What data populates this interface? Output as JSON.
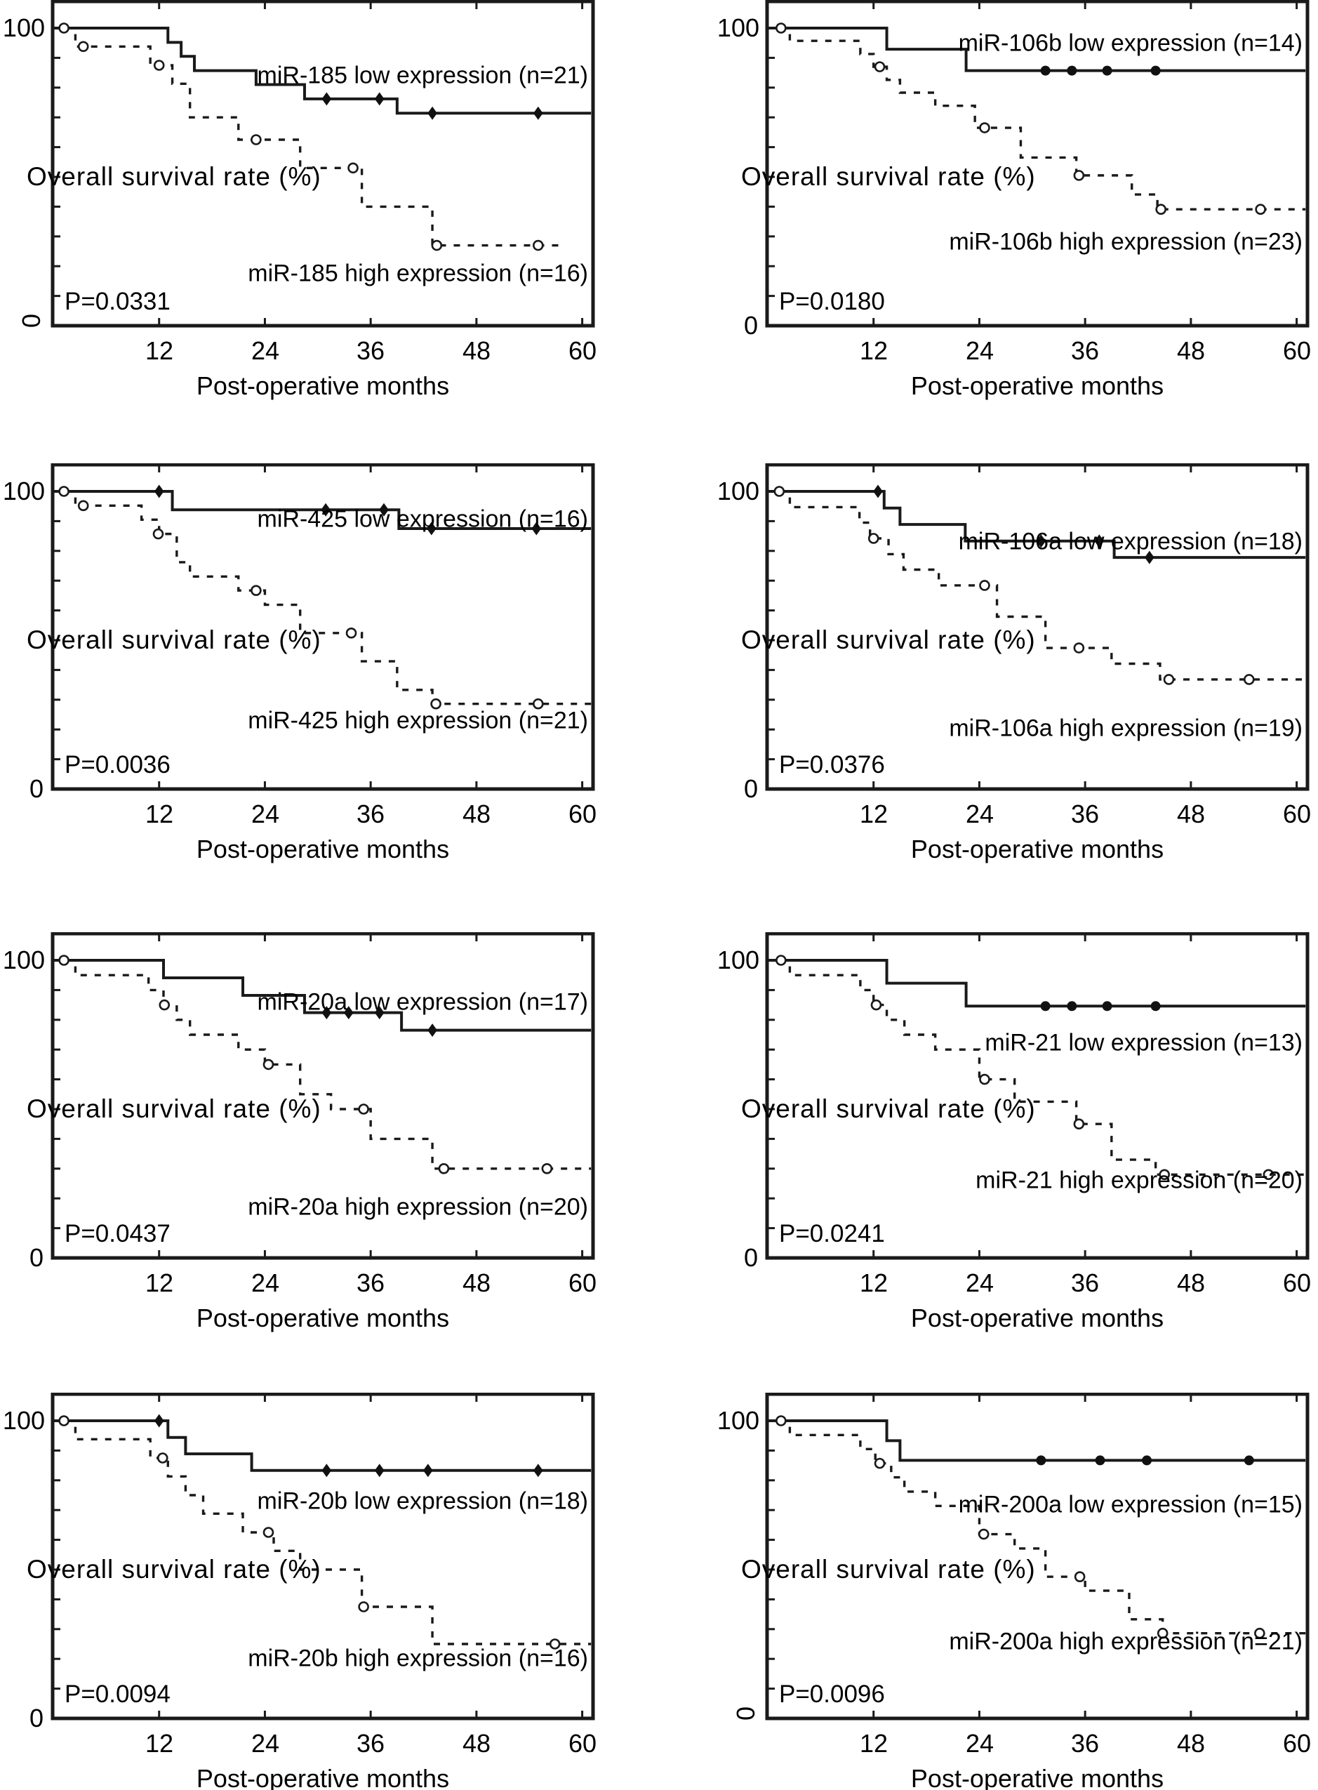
{
  "axis": {
    "x_ticks": [
      "12",
      "24",
      "36",
      "48",
      "60"
    ],
    "x_label": "Post-operative months",
    "y_label": "Overall survival rate (%)",
    "y_top": "100",
    "y_bottom": "0"
  },
  "chart_data": {
    "type": "km_survival_grid",
    "layout": "4 rows x 2 columns",
    "x_range_months": [
      0,
      61
    ],
    "y_range_percent": [
      0,
      100
    ],
    "x_tick_values": [
      12,
      24,
      36,
      48,
      60
    ],
    "grid": "off",
    "series_styles": {
      "low": "solid line, filled censor marks",
      "high": "dashed line, open circle censor marks"
    },
    "panels": [
      {
        "name": "miR-185",
        "col": 0,
        "row": 0,
        "title_low": "miR-185 low expression (n=21)",
        "title_high": "miR-185 high expression (n=16)",
        "p": "P=0.0331",
        "title_low_y": 108,
        "title_high_y": 390,
        "zero_rotated": true,
        "low": {
          "marker": "diamond",
          "start_circle": [
            1.2,
            100
          ],
          "end": 61,
          "steps": [
            [
              13,
              95.2
            ],
            [
              14.5,
              90.5
            ],
            [
              16,
              85.7
            ],
            [
              23,
              81
            ],
            [
              28.5,
              76.2
            ],
            [
              39,
              71.4
            ]
          ],
          "censors": [
            [
              31,
              76.2
            ],
            [
              37,
              76.2
            ],
            [
              43,
              71.4
            ],
            [
              55,
              71.4
            ]
          ]
        },
        "high": {
          "end": 58,
          "steps": [
            [
              2.5,
              93.8
            ],
            [
              11,
              87.5
            ],
            [
              13.5,
              81.3
            ],
            [
              15.5,
              70
            ],
            [
              21,
              62.5
            ],
            [
              28,
              53
            ],
            [
              35,
              40
            ],
            [
              43,
              27
            ]
          ],
          "circles": [
            [
              3.4,
              93.8
            ],
            [
              12,
              87.5
            ],
            [
              23,
              62.5
            ],
            [
              34,
              53
            ],
            [
              43.5,
              27
            ],
            [
              55,
              27
            ]
          ]
        }
      },
      {
        "name": "miR-106b",
        "col": 1,
        "row": 0,
        "title_low": "miR-106b low expression (n=14)",
        "title_high": "miR-106b high expression (n=23)",
        "p": "P=0.0180",
        "title_low_y": 62,
        "title_high_y": 345,
        "zero_rotated": false,
        "low": {
          "marker": "dot",
          "start_circle": [
            1.5,
            100
          ],
          "end": 61,
          "steps": [
            [
              13.5,
              92.9
            ],
            [
              22.5,
              85.7
            ]
          ],
          "censors": [
            [
              31.5,
              85.7
            ],
            [
              34.5,
              85.7
            ],
            [
              38.5,
              85.7
            ],
            [
              44,
              85.7
            ]
          ]
        },
        "high": {
          "end": 61,
          "steps": [
            [
              2.5,
              95.7
            ],
            [
              10.5,
              91.3
            ],
            [
              12,
              87
            ],
            [
              13.5,
              82.6
            ],
            [
              15,
              78.3
            ],
            [
              19,
              73.9
            ],
            [
              23.5,
              66.5
            ],
            [
              28.7,
              56.5
            ],
            [
              35,
              50.5
            ],
            [
              41.3,
              44.1
            ],
            [
              44.2,
              39.1
            ]
          ],
          "circles": [
            [
              12.7,
              87
            ],
            [
              24.6,
              66.5
            ],
            [
              35.3,
              50.5
            ],
            [
              44.6,
              39.1
            ],
            [
              55.9,
              39.1
            ]
          ]
        }
      },
      {
        "name": "miR-425",
        "col": 0,
        "row": 1,
        "title_low": "miR-425 low expression (n=16)",
        "title_high": "miR-425 high expression (n=21)",
        "p": "P=0.0036",
        "title_low_y": 80,
        "title_high_y": 367,
        "zero_rotated": false,
        "low": {
          "marker": "diamond",
          "start_circle": [
            1.2,
            100
          ],
          "end": 61,
          "steps": [
            [
              13.5,
              93.8
            ],
            [
              39.2,
              87.5
            ]
          ],
          "censors": [
            [
              12,
              100
            ],
            [
              30.9,
              93.8
            ],
            [
              37.5,
              93.8
            ],
            [
              42.9,
              87.5
            ],
            [
              54.8,
              87.5
            ]
          ]
        },
        "high": {
          "end": 61,
          "steps": [
            [
              2.5,
              95.2
            ],
            [
              10,
              90.5
            ],
            [
              12,
              85.7
            ],
            [
              14,
              76.2
            ],
            [
              15.5,
              71.4
            ],
            [
              21,
              66.7
            ],
            [
              24,
              61.9
            ],
            [
              28,
              52.4
            ],
            [
              35,
              42.9
            ],
            [
              39,
              33.3
            ],
            [
              43,
              28.6
            ]
          ],
          "circles": [
            [
              3.4,
              95.2
            ],
            [
              11.9,
              85.7
            ],
            [
              23,
              66.7
            ],
            [
              33.8,
              52.4
            ],
            [
              43.4,
              28.6
            ],
            [
              55,
              28.6
            ]
          ]
        }
      },
      {
        "name": "miR-106a",
        "col": 1,
        "row": 1,
        "title_low": "miR-106a low expression (n=18)",
        "title_high": "miR-106a high expression (n=19)",
        "p": "P=0.0376",
        "title_low_y": 112,
        "title_high_y": 378,
        "zero_rotated": false,
        "low": {
          "marker": "diamond",
          "start_circle": [
            1.3,
            100
          ],
          "end": 61,
          "steps": [
            [
              13.2,
              94.4
            ],
            [
              15,
              88.9
            ],
            [
              22.4,
              83.3
            ],
            [
              39.3,
              77.8
            ]
          ],
          "censors": [
            [
              12.5,
              100
            ],
            [
              31,
              83.3
            ],
            [
              37.6,
              83.3
            ],
            [
              43.3,
              77.8
            ]
          ]
        },
        "high": {
          "end": 61,
          "steps": [
            [
              2.5,
              94.7
            ],
            [
              10.4,
              89.5
            ],
            [
              11.6,
              84.2
            ],
            [
              13.7,
              78.9
            ],
            [
              15.4,
              73.7
            ],
            [
              19.4,
              68.4
            ],
            [
              26,
              57.9
            ],
            [
              31.5,
              47.4
            ],
            [
              39,
              42.1
            ],
            [
              44.5,
              36.8
            ]
          ],
          "circles": [
            [
              12,
              84.2
            ],
            [
              24.6,
              68.4
            ],
            [
              35.3,
              47.4
            ],
            [
              45.5,
              36.8
            ],
            [
              54.6,
              36.8
            ]
          ]
        }
      },
      {
        "name": "miR-20a",
        "col": 0,
        "row": 2,
        "title_low": "miR-20a low expression (n=17)",
        "title_high": "miR-20a high expression (n=20)",
        "p": "P=0.0437",
        "title_low_y": 100,
        "title_high_y": 392,
        "zero_rotated": false,
        "low": {
          "marker": "diamond",
          "start_circle": [
            1.2,
            100
          ],
          "end": 61,
          "steps": [
            [
              12.5,
              94.1
            ],
            [
              21.5,
              88.2
            ],
            [
              28.5,
              82.4
            ],
            [
              39.5,
              76.5
            ]
          ],
          "censors": [
            [
              31,
              82.4
            ],
            [
              33.5,
              82.4
            ],
            [
              37,
              82.4
            ],
            [
              43,
              76.5
            ]
          ]
        },
        "high": {
          "end": 61,
          "steps": [
            [
              2.5,
              95
            ],
            [
              10.8,
              90
            ],
            [
              12.5,
              85
            ],
            [
              14,
              80
            ],
            [
              15.5,
              75
            ],
            [
              21,
              70
            ],
            [
              24,
              65
            ],
            [
              28,
              55
            ],
            [
              31.5,
              50
            ],
            [
              36,
              40
            ],
            [
              43,
              30
            ]
          ],
          "circles": [
            [
              12.6,
              85
            ],
            [
              24.4,
              65
            ],
            [
              35.2,
              50
            ],
            [
              44.3,
              30
            ],
            [
              56,
              30
            ]
          ]
        }
      },
      {
        "name": "miR-21",
        "col": 1,
        "row": 2,
        "title_low": "miR-21 low expression (n=13)",
        "title_high": "miR-21 high expression (n=20)",
        "p": "P=0.0241",
        "title_low_y": 158,
        "title_high_y": 354,
        "zero_rotated": false,
        "low": {
          "marker": "dot",
          "start_circle": [
            1.5,
            100
          ],
          "end": 61,
          "steps": [
            [
              13.5,
              92.3
            ],
            [
              22.5,
              84.6
            ]
          ],
          "censors": [
            [
              31.5,
              84.6
            ],
            [
              34.5,
              84.6
            ],
            [
              38.5,
              84.6
            ],
            [
              44,
              84.6
            ]
          ]
        },
        "high": {
          "end": 61,
          "steps": [
            [
              2.5,
              95
            ],
            [
              10.5,
              90
            ],
            [
              12,
              85
            ],
            [
              13.5,
              80
            ],
            [
              15.5,
              75
            ],
            [
              19,
              70
            ],
            [
              24,
              60
            ],
            [
              28,
              52.5
            ],
            [
              35,
              45
            ],
            [
              39,
              33
            ],
            [
              44,
              28
            ]
          ],
          "circles": [
            [
              12.3,
              85
            ],
            [
              24.6,
              60
            ],
            [
              35.3,
              45
            ],
            [
              45,
              28
            ],
            [
              56.8,
              28
            ]
          ]
        }
      },
      {
        "name": "miR-20b",
        "col": 0,
        "row": 3,
        "title_low": "miR-20b low expression (n=18)",
        "title_high": "miR-20b high expression (n=16)",
        "p": "P=0.0094",
        "title_low_y": 155,
        "title_high_y": 379,
        "zero_rotated": false,
        "low": {
          "marker": "diamond",
          "start_circle": [
            1.2,
            100
          ],
          "end": 61,
          "steps": [
            [
              13,
              94.4
            ],
            [
              15,
              88.9
            ],
            [
              22.5,
              83.3
            ]
          ],
          "censors": [
            [
              12,
              100
            ],
            [
              31,
              83.3
            ],
            [
              37,
              83.3
            ],
            [
              42.5,
              83.3
            ],
            [
              55,
              83.3
            ]
          ]
        },
        "high": {
          "end": 61,
          "steps": [
            [
              2.5,
              93.8
            ],
            [
              11,
              87.5
            ],
            [
              13,
              81.3
            ],
            [
              15,
              75
            ],
            [
              17,
              68.8
            ],
            [
              21.5,
              62.5
            ],
            [
              25,
              56.3
            ],
            [
              28,
              50
            ],
            [
              35,
              37.5
            ],
            [
              43,
              25
            ]
          ],
          "circles": [
            [
              12.4,
              87.5
            ],
            [
              24.4,
              62.5
            ],
            [
              35.2,
              37.5
            ],
            [
              56.9,
              25
            ]
          ]
        }
      },
      {
        "name": "miR-200a",
        "col": 1,
        "row": 3,
        "title_low": "miR-200a low expression (n=15)",
        "title_high": "miR-200a high expression (n=21)",
        "p": "P=0.0096",
        "title_low_y": 160,
        "title_high_y": 355,
        "zero_rotated": true,
        "low": {
          "marker": "dot",
          "start_circle": [
            1.5,
            100
          ],
          "end": 61,
          "steps": [
            [
              13.5,
              93.3
            ],
            [
              15,
              86.7
            ]
          ],
          "censors": [
            [
              31,
              86.7
            ],
            [
              37.7,
              86.7
            ],
            [
              43,
              86.7
            ],
            [
              54.6,
              86.7
            ]
          ]
        },
        "high": {
          "end": 61,
          "steps": [
            [
              2.5,
              95.2
            ],
            [
              10.5,
              90.5
            ],
            [
              12.2,
              85.7
            ],
            [
              14,
              81
            ],
            [
              15.5,
              76.2
            ],
            [
              19,
              71.4
            ],
            [
              24,
              61.9
            ],
            [
              28,
              57.1
            ],
            [
              31.5,
              47.6
            ],
            [
              36,
              42.9
            ],
            [
              41,
              33.3
            ],
            [
              44.8,
              28.6
            ]
          ],
          "circles": [
            [
              12.7,
              85.7
            ],
            [
              24.5,
              61.9
            ],
            [
              35.4,
              47.6
            ],
            [
              44.8,
              28.6
            ],
            [
              55.8,
              28.6
            ]
          ]
        }
      }
    ]
  }
}
